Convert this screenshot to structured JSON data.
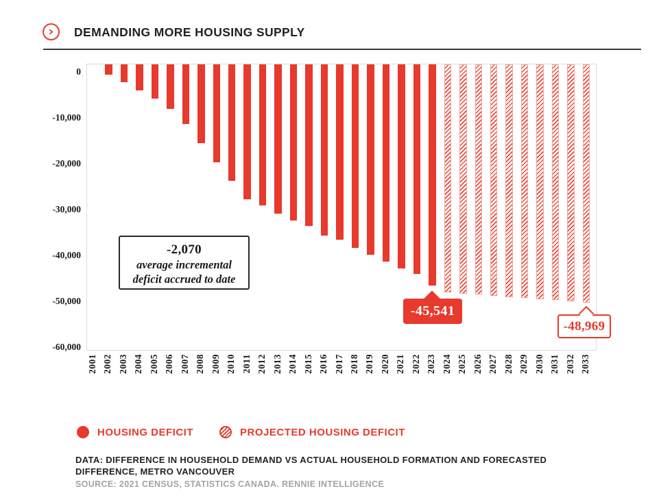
{
  "header": {
    "title": "DEMANDING MORE HOUSING SUPPLY"
  },
  "chart_data": {
    "type": "bar",
    "title": "DEMANDING MORE HOUSING SUPPLY",
    "xlabel": "",
    "ylabel": "",
    "ylim": [
      -60000,
      0
    ],
    "grid": false,
    "legend_position": "bottom",
    "y_tick_labels": [
      "0",
      "-10,000",
      "-20,000",
      "-30,000",
      "-40,000",
      "-50,000",
      "-60,000"
    ],
    "categories": [
      2001,
      2002,
      2003,
      2004,
      2005,
      2006,
      2007,
      2008,
      2009,
      2010,
      2011,
      2012,
      2013,
      2014,
      2015,
      2016,
      2017,
      2018,
      2019,
      2020,
      2021,
      2022,
      2023,
      2024,
      2025,
      2026,
      2027,
      2028,
      2029,
      2030,
      2031,
      2032,
      2033
    ],
    "series": [
      {
        "name": "HOUSING DEFICIT",
        "style": "solid",
        "values": [
          null,
          -2070,
          -3700,
          -5400,
          -7100,
          -9200,
          -12300,
          -16200,
          -20100,
          -23900,
          -27700,
          -29000,
          -30700,
          -32100,
          -33200,
          -35200,
          -36000,
          -37700,
          -39100,
          -40500,
          -42000,
          -43100,
          -45541,
          null,
          null,
          null,
          null,
          null,
          null,
          null,
          null,
          null,
          null
        ]
      },
      {
        "name": "PROJECTED HOUSING DEFICIT",
        "style": "hatched",
        "values": [
          null,
          null,
          null,
          null,
          null,
          null,
          null,
          null,
          null,
          null,
          null,
          null,
          null,
          null,
          null,
          null,
          null,
          null,
          null,
          null,
          null,
          null,
          null,
          -46900,
          -47130,
          -47360,
          -47590,
          -47820,
          -48050,
          -48280,
          -48510,
          -48740,
          -48969
        ]
      }
    ],
    "annotations": [
      {
        "type": "box",
        "number": "-2,070",
        "caption_line1": "average incremental",
        "caption_line2": "deficit accrued to date"
      },
      {
        "type": "callout",
        "target_year": 2023,
        "label": "-45,541"
      },
      {
        "type": "callout",
        "target_year": 2033,
        "label": "-48,969"
      }
    ]
  },
  "legend": {
    "items": [
      {
        "label": "HOUSING DEFICIT",
        "swatch": "solid-red-circle"
      },
      {
        "label": "PROJECTED HOUSING DEFICIT",
        "swatch": "hatched-red-circle"
      }
    ]
  },
  "footer": {
    "data_line1": "DATA: DIFFERENCE IN HOUSEHOLD DEMAND VS ACTUAL HOUSEHOLD FORMATION AND FORECASTED",
    "data_line2": "DIFFERENCE, METRO VANCOUVER",
    "source": "SOURCE: 2021 CENSUS, STATISTICS CANADA. RENNIE INTELLIGENCE"
  },
  "colors": {
    "accent_red": "#e8392d",
    "text_dark": "#231f20",
    "text_gray": "#a5a3a4",
    "plot_border": "#dadada"
  }
}
